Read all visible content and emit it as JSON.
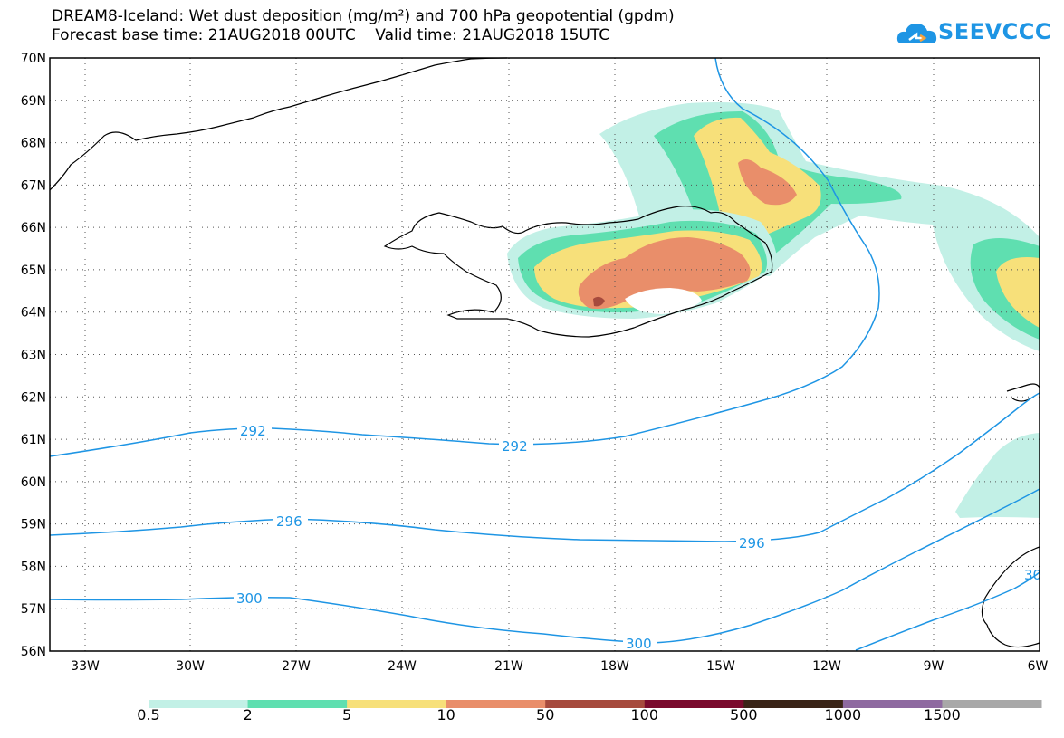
{
  "header": {
    "title_line1": "DREAM8-Iceland: Wet dust deposition (mg/m²) and 700 hPa geopotential (gpdm)",
    "title_line2": "Forecast base time: 21AUG2018 00UTC    Valid time: 21AUG2018 15UTC"
  },
  "logo": {
    "text": "SEEVCCC",
    "icon": "cloud-icon"
  },
  "map": {
    "lat_labels": [
      "70N",
      "69N",
      "68N",
      "67N",
      "66N",
      "65N",
      "64N",
      "63N",
      "62N",
      "61N",
      "60N",
      "59N",
      "58N",
      "57N",
      "56N"
    ],
    "lon_labels": [
      "33W",
      "30W",
      "27W",
      "24W",
      "21W",
      "18W",
      "15W",
      "12W",
      "9W",
      "6W"
    ],
    "contour_labels": [
      "292",
      "292",
      "296",
      "296",
      "300",
      "300",
      "30"
    ],
    "contour_color": "#1e95e4"
  },
  "legend": {
    "colors": [
      "#c2f0e6",
      "#5fdfb0",
      "#f7e07a",
      "#e98e6a",
      "#a64a3d",
      "#7a0a2d",
      "#3a2417",
      "#8e6aa0",
      "#a8a8a8"
    ],
    "labels": [
      "0.5",
      "2",
      "5",
      "10",
      "50",
      "100",
      "500",
      "1000",
      "1500"
    ]
  }
}
